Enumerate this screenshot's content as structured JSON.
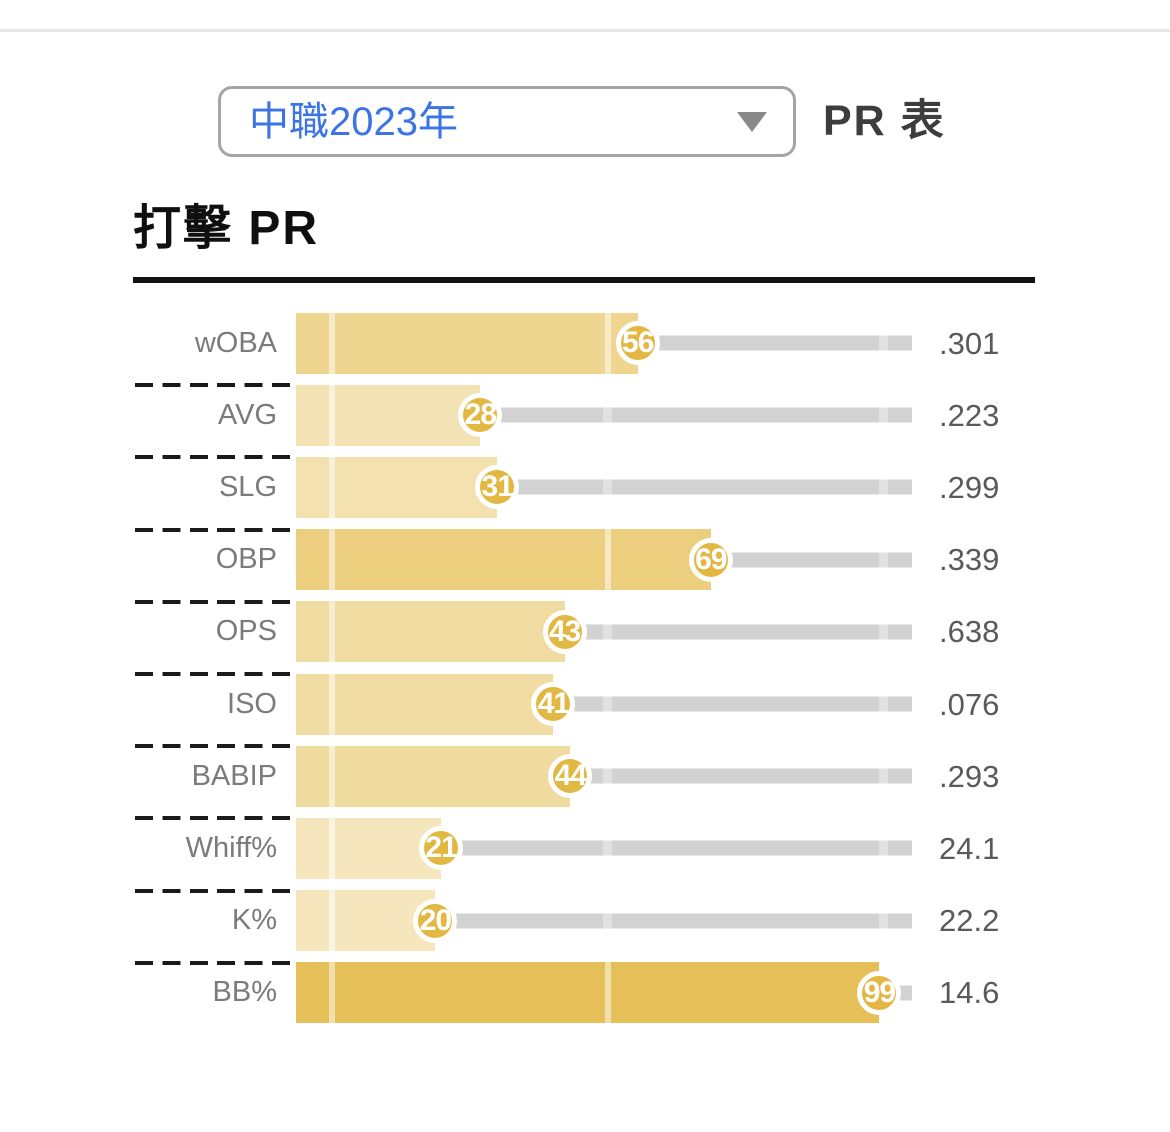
{
  "header": {
    "dropdown": {
      "selected": "中職2023年"
    },
    "table_label": "PR 表"
  },
  "section": {
    "title": "打擊 PR"
  },
  "colors": {
    "accent_yellow": "#e2b843",
    "badge_fill": "#e2b843",
    "badge_ring": "#ffffff",
    "track_gray": "#d2d2d2",
    "track_tick_gray": "#e1e1e1",
    "dropdown_text_blue": "#3c74e4",
    "label_gray": "#7b7b7b",
    "value_gray": "#5a5a5a",
    "separator_black": "#1a1a1a"
  },
  "chart_data": {
    "type": "bar",
    "orientation": "horizontal",
    "title": "打擊 PR",
    "categories": [
      "wOBA",
      "AVG",
      "SLG",
      "OBP",
      "OPS",
      "ISO",
      "BABIP",
      "Whiff%",
      "K%",
      "BB%"
    ],
    "series": [
      {
        "name": "PR",
        "values": [
          56,
          28,
          31,
          69,
          43,
          41,
          44,
          21,
          20,
          99
        ]
      },
      {
        "name": "stat_value",
        "values": [
          ".301",
          ".223",
          ".299",
          ".339",
          ".638",
          ".076",
          ".293",
          "24.1",
          "22.2",
          "14.6"
        ]
      }
    ],
    "xlim": [
      0,
      100
    ],
    "grid": false,
    "legend": false,
    "reference_ticks_pct": [
      5.8,
      50.6,
      95.3
    ]
  }
}
